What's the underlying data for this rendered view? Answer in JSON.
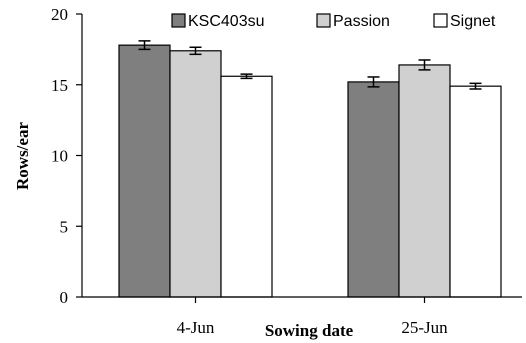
{
  "chart_data": {
    "type": "bar",
    "categories": [
      "4-Jun",
      "25-Jun"
    ],
    "series": [
      {
        "name": "KSC403su",
        "values": [
          17.8,
          15.2
        ],
        "errors": [
          0.3,
          0.35
        ],
        "color": "#7f7f7f"
      },
      {
        "name": "Passion",
        "values": [
          17.4,
          16.4
        ],
        "errors": [
          0.25,
          0.35
        ],
        "color": "#d0d0d0"
      },
      {
        "name": "Signet",
        "values": [
          15.6,
          14.9
        ],
        "errors": [
          0.15,
          0.2
        ],
        "color": "#ffffff"
      }
    ],
    "xlabel": "Sowing date",
    "ylabel": "Rows/ear",
    "ylim": [
      0,
      20
    ],
    "yticks": [
      0,
      5,
      10,
      15,
      20
    ],
    "grid": false,
    "legend_position": "top"
  }
}
